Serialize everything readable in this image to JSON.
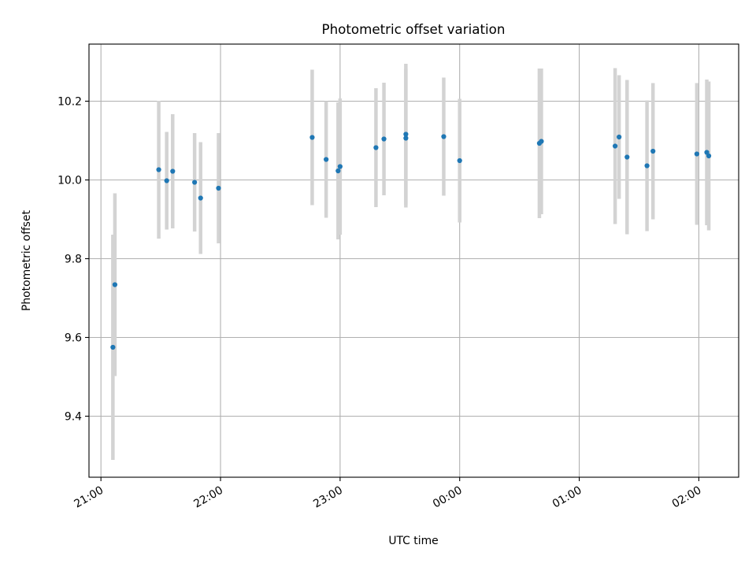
{
  "chart_data": {
    "type": "scatter",
    "title": "Photometric offset variation",
    "xlabel": "UTC time",
    "ylabel": "Photometric offset",
    "x_unit": "UTC time (h:mm, continuing past midnight)",
    "xlim": [
      "20:54",
      "02:20"
    ],
    "ylim": [
      9.245,
      10.345
    ],
    "xticks": [
      "21:00",
      "22:00",
      "23:00",
      "00:00",
      "01:00",
      "02:00"
    ],
    "yticks": [
      "9.4",
      "9.6",
      "9.8",
      "10.0",
      "10.2"
    ],
    "grid": true,
    "marker_color": "#1f77b4",
    "errorbar_color": "#d3d3d3",
    "points": [
      {
        "x": "21:06",
        "y": 9.575,
        "err": 0.286
      },
      {
        "x": "21:07",
        "y": 9.734,
        "err": 0.232
      },
      {
        "x": "21:29",
        "y": 10.026,
        "err": 0.175
      },
      {
        "x": "21:33",
        "y": 9.998,
        "err": 0.124
      },
      {
        "x": "21:36",
        "y": 10.022,
        "err": 0.145
      },
      {
        "x": "21:47",
        "y": 9.994,
        "err": 0.125
      },
      {
        "x": "21:50",
        "y": 9.954,
        "err": 0.142
      },
      {
        "x": "21:59",
        "y": 9.979,
        "err": 0.14
      },
      {
        "x": "22:46",
        "y": 10.108,
        "err": 0.172
      },
      {
        "x": "22:53",
        "y": 10.052,
        "err": 0.148
      },
      {
        "x": "22:59",
        "y": 10.023,
        "err": 0.174
      },
      {
        "x": "23:00",
        "y": 10.034,
        "err": 0.173
      },
      {
        "x": "23:18",
        "y": 10.082,
        "err": 0.151
      },
      {
        "x": "23:22",
        "y": 10.104,
        "err": 0.143
      },
      {
        "x": "23:33",
        "y": 10.106,
        "err": 0.176
      },
      {
        "x": "23:33",
        "y": 10.116,
        "err": 0.179
      },
      {
        "x": "23:52",
        "y": 10.11,
        "err": 0.15
      },
      {
        "x": "00:00",
        "y": 10.049,
        "err": 0.157
      },
      {
        "x": "00:40",
        "y": 10.093,
        "err": 0.19
      },
      {
        "x": "00:41",
        "y": 10.098,
        "err": 0.185
      },
      {
        "x": "01:18",
        "y": 10.086,
        "err": 0.198
      },
      {
        "x": "01:20",
        "y": 10.109,
        "err": 0.157
      },
      {
        "x": "01:24",
        "y": 10.058,
        "err": 0.196
      },
      {
        "x": "01:34",
        "y": 10.036,
        "err": 0.166
      },
      {
        "x": "01:37",
        "y": 10.073,
        "err": 0.173
      },
      {
        "x": "01:59",
        "y": 10.066,
        "err": 0.18
      },
      {
        "x": "02:04",
        "y": 10.07,
        "err": 0.185
      },
      {
        "x": "02:05",
        "y": 10.061,
        "err": 0.189
      }
    ]
  }
}
